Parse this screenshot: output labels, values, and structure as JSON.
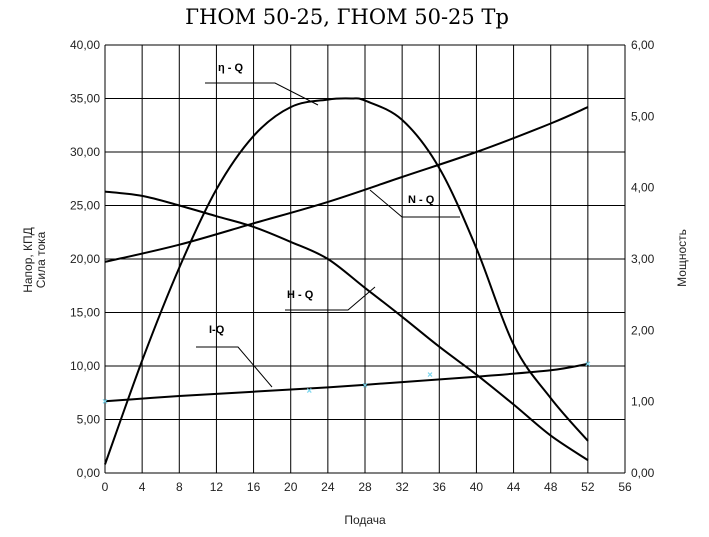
{
  "chart_data": {
    "type": "line",
    "title": "ГНОМ 50-25, ГНОМ 50-25 Тр",
    "xlabel": "Подача",
    "ylabel_left": [
      "Напор, КПД",
      "Сила тока"
    ],
    "ylabel_right": "Мощность",
    "xlim": [
      0,
      56
    ],
    "ylim_left": [
      0,
      40
    ],
    "ylim_right": [
      0,
      6
    ],
    "grid": true,
    "x_ticks": [
      "0",
      "4",
      "8",
      "12",
      "16",
      "20",
      "24",
      "28",
      "32",
      "36",
      "40",
      "44",
      "48",
      "52",
      "56"
    ],
    "y_left_ticks": [
      "0,00",
      "5,00",
      "10,00",
      "15,00",
      "20,00",
      "25,00",
      "30,00",
      "35,00",
      "40,00"
    ],
    "y_right_ticks": [
      "0,00",
      "1,00",
      "2,00",
      "3,00",
      "4,00",
      "5,00",
      "6,00"
    ],
    "series": [
      {
        "name": "η - Q",
        "axis": "left",
        "x": [
          0,
          4,
          8,
          12,
          16,
          20,
          24,
          26.5,
          28,
          32,
          36,
          40,
          44,
          48,
          52
        ],
        "y": [
          0.8,
          10.5,
          19.2,
          26.5,
          31.5,
          34.2,
          34.9,
          35.0,
          34.8,
          33.0,
          28.5,
          21.0,
          12.0,
          7.0,
          3.0
        ]
      },
      {
        "name": "H - Q",
        "axis": "left",
        "x": [
          0,
          4,
          8,
          12,
          16,
          20,
          24,
          28,
          32,
          36,
          40,
          44,
          48,
          52
        ],
        "y": [
          26.3,
          25.9,
          25.0,
          24.0,
          23.0,
          21.6,
          20.0,
          17.3,
          14.6,
          11.8,
          9.2,
          6.4,
          3.5,
          1.2
        ]
      },
      {
        "name": "N - Q",
        "axis": "right",
        "x": [
          0,
          8,
          16,
          24,
          32,
          40,
          48,
          52
        ],
        "y": [
          2.96,
          3.2,
          3.5,
          3.8,
          4.15,
          4.5,
          4.9,
          5.13
        ]
      },
      {
        "name": "I-Q",
        "axis": "left",
        "x": [
          0,
          8,
          16,
          24,
          32,
          40,
          48,
          52
        ],
        "y": [
          6.7,
          7.2,
          7.6,
          8.0,
          8.5,
          9.0,
          9.6,
          10.2
        ]
      }
    ],
    "markers": {
      "x": [
        0,
        22,
        28,
        35,
        52
      ],
      "y": [
        6.7,
        7.7,
        8.2,
        9.2,
        10.2
      ]
    }
  }
}
